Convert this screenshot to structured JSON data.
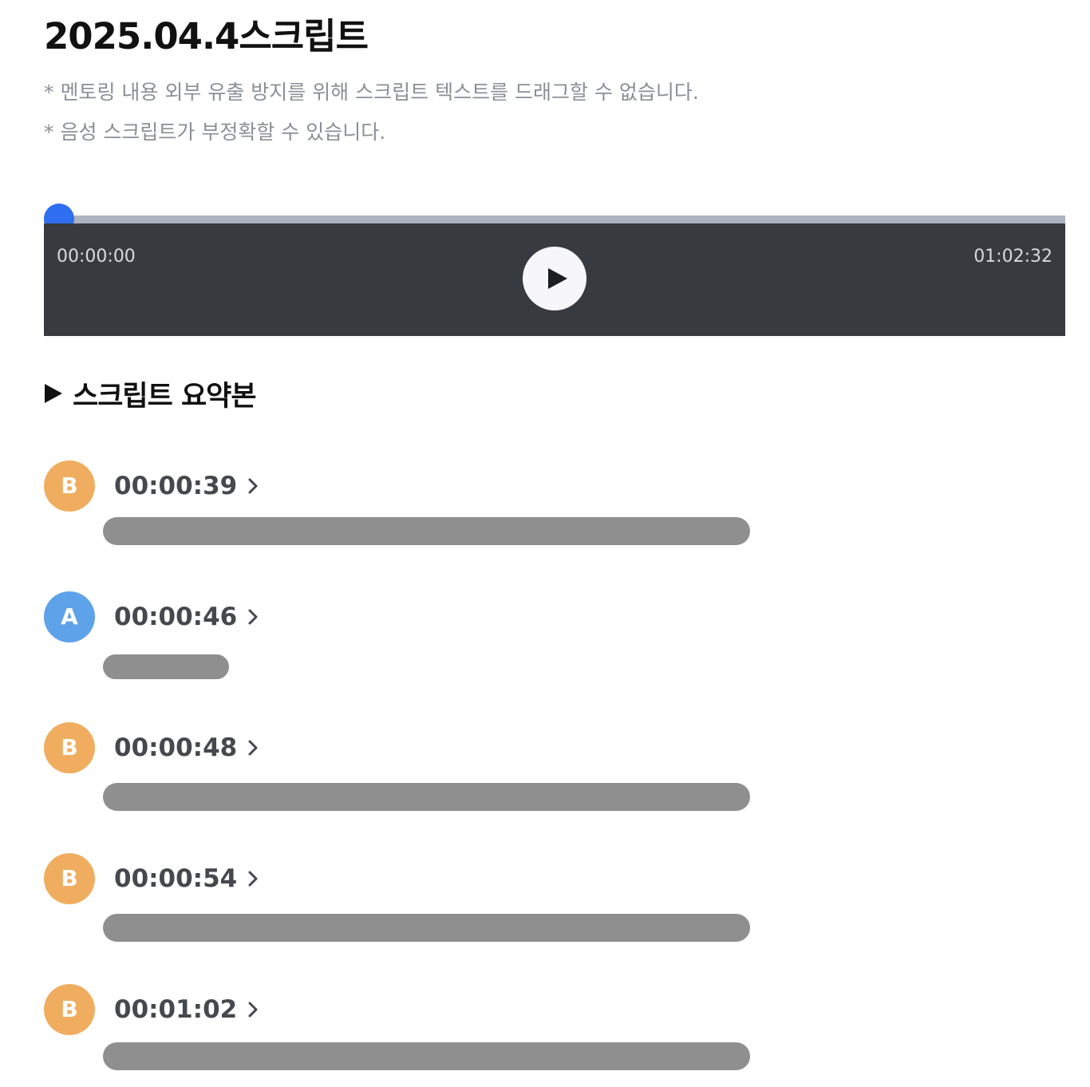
{
  "page": {
    "title": "2025.04.4스크립트",
    "notices": [
      "* 멘토링 내용 외부 유출 방지를 위해 스크립트 텍스트를 드래그할 수 없습니다.",
      "* 음성 스크립트가 부정확할 수 있습니다."
    ]
  },
  "player": {
    "current_time": "00:00:00",
    "total_time": "01:02:32",
    "progress": 0,
    "play_icon": "play-icon",
    "accent_color": "#2f6ef0",
    "body_color": "#373a3f"
  },
  "summary": {
    "heading": "스크립트 요약본",
    "heading_icon": "triangle-right-icon"
  },
  "entries": [
    {
      "speaker": "B",
      "timestamp": "00:00:39",
      "text_state": "blurred"
    },
    {
      "speaker": "A",
      "timestamp": "00:00:46",
      "text_state": "blurred"
    },
    {
      "speaker": "B",
      "timestamp": "00:00:48",
      "text_state": "blurred"
    },
    {
      "speaker": "B",
      "timestamp": "00:00:54",
      "text_state": "blurred"
    },
    {
      "speaker": "B",
      "timestamp": "00:01:02",
      "text_state": "blurred"
    }
  ],
  "colors": {
    "speaker_b": "#f0ad5f",
    "speaker_a": "#5ea2ea",
    "blur": "#8f8f8f"
  }
}
